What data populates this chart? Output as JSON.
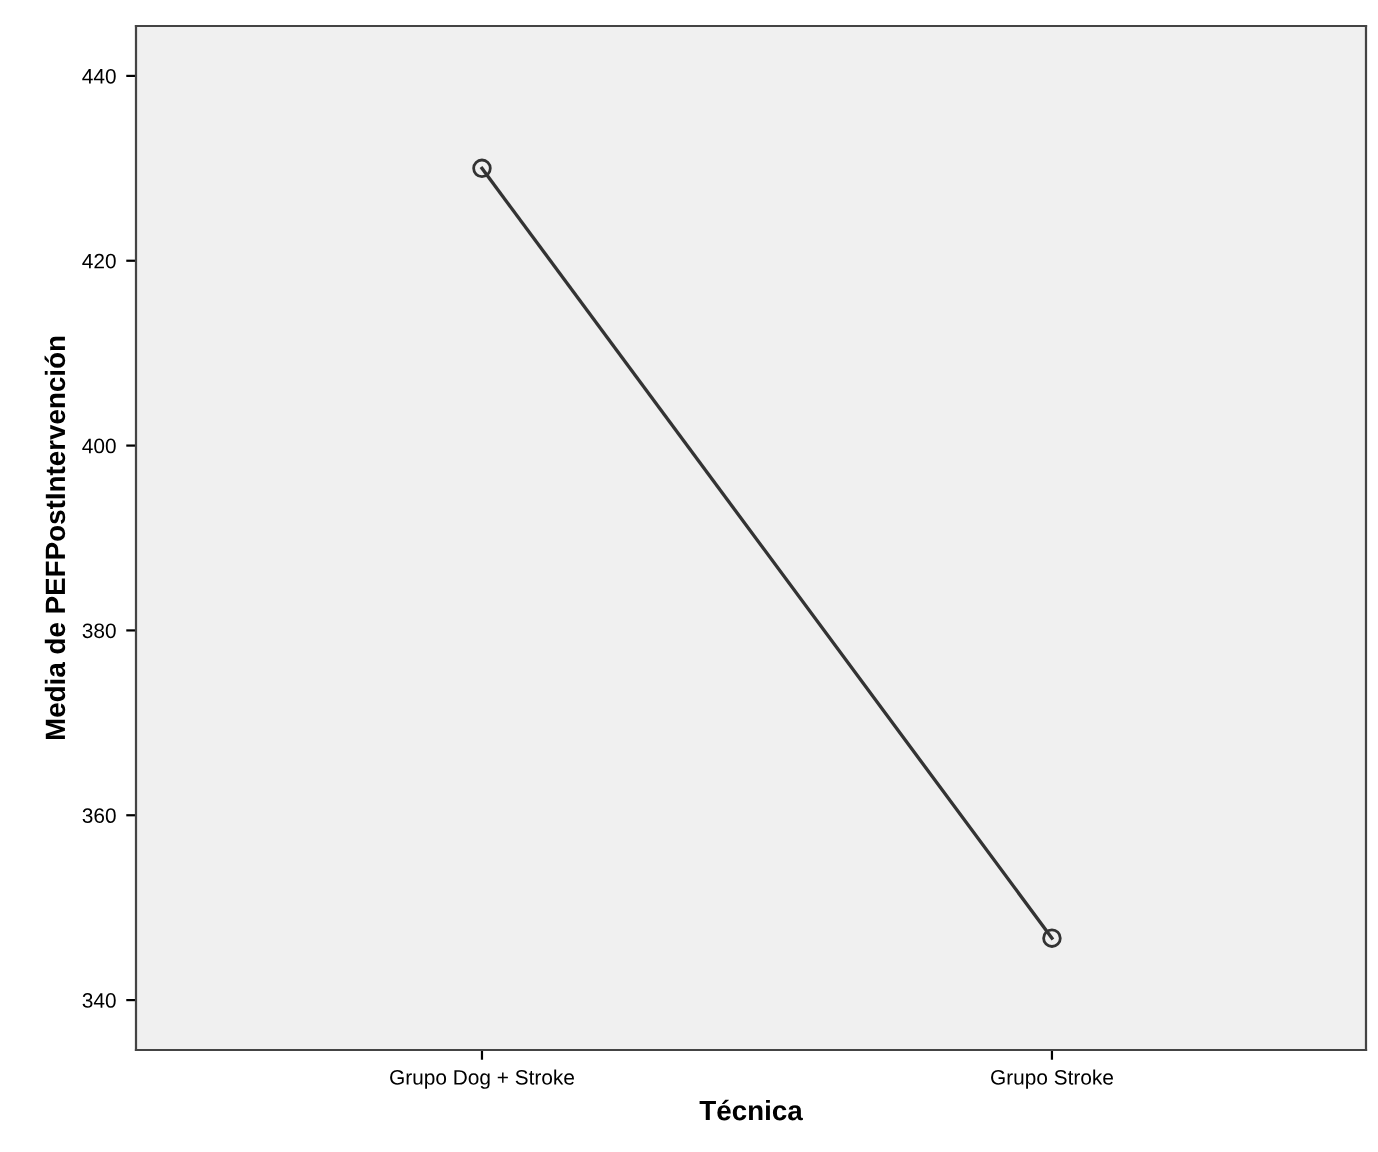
{
  "chart_data": {
    "type": "line",
    "xlabel": "Técnica",
    "ylabel": "Media de PEFPostIntervención",
    "categories": [
      "Grupo Dog + Stroke",
      "Grupo Stroke"
    ],
    "series": [
      {
        "color": "#333333",
        "values": [
          430,
          346.7
        ]
      }
    ],
    "ylim": [
      334.6,
      445.4
    ],
    "yticks": [
      340,
      360,
      380,
      400,
      420,
      440
    ],
    "marker": "circle",
    "line_style": "solid",
    "grid": false,
    "legend": false
  }
}
